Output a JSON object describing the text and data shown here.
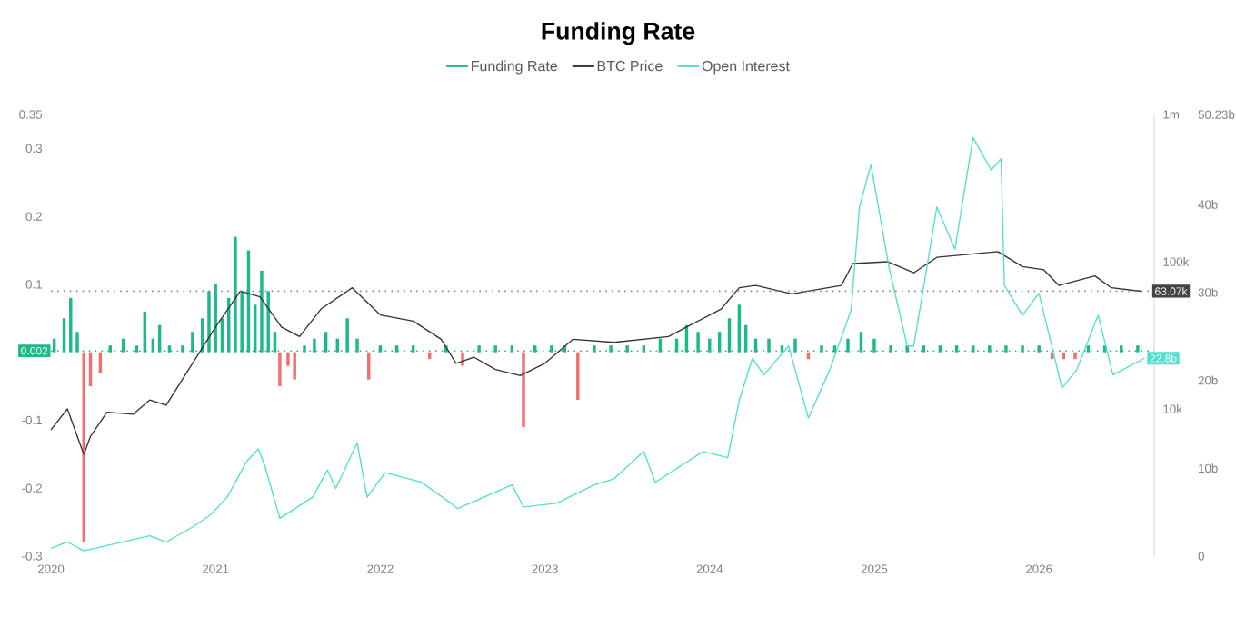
{
  "chart_data": {
    "type": "line",
    "title": "Funding Rate",
    "legend": "top",
    "log": "y2",
    "xlim": [
      2020,
      2026.7
    ],
    "xticks": [
      2020,
      2021,
      2022,
      2023,
      2024,
      2025,
      2026
    ],
    "ylim": [
      -0.3,
      0.35
    ],
    "yticks": [
      -0.3,
      -0.2,
      -0.1,
      0.1,
      0.2,
      0.3,
      0.35
    ],
    "y2lim": [
      1000,
      1000000
    ],
    "y2ticks": [
      {
        "value": 10000,
        "label": "10k"
      },
      {
        "value": 100000,
        "label": "100k"
      },
      {
        "value": 1000000,
        "label": "1m"
      }
    ],
    "y3lim": [
      0,
      50.23
    ],
    "y3ticks": [
      0,
      {
        "value": 10,
        "label": "10b"
      },
      {
        "value": 20,
        "label": "20b"
      },
      {
        "value": 30,
        "label": "30b"
      },
      {
        "value": 40,
        "label": "40b"
      },
      {
        "value": 50.23,
        "label": "50.23b"
      }
    ],
    "ref_lines": [
      {
        "axis": "y",
        "value": 0.002,
        "label": "0.002",
        "color": "#1db98a",
        "line_style": "dotted"
      },
      {
        "axis": "y2",
        "value": 63070,
        "label": "63.07k",
        "color": "#888888",
        "line_style": "dotted"
      }
    ],
    "annotations": [
      "22.8b"
    ],
    "series": [
      {
        "name": "Funding Rate",
        "type": "bar",
        "color": "#1db98a",
        "axis": "y",
        "x": [
          2020.02,
          2020.08,
          2020.12,
          2020.16,
          2020.2,
          2020.24,
          2020.3,
          2020.36,
          2020.44,
          2020.52,
          2020.57,
          2020.62,
          2020.66,
          2020.72,
          2020.8,
          2020.86,
          2020.92,
          2020.96,
          2021.0,
          2021.04,
          2021.08,
          2021.12,
          2021.16,
          2021.2,
          2021.24,
          2021.28,
          2021.32,
          2021.36,
          2021.39,
          2021.44,
          2021.48,
          2021.54,
          2021.6,
          2021.67,
          2021.74,
          2021.8,
          2021.86,
          2021.93,
          2022.0,
          2022.1,
          2022.2,
          2022.3,
          2022.4,
          2022.5,
          2022.6,
          2022.7,
          2022.8,
          2022.87,
          2022.94,
          2023.04,
          2023.12,
          2023.2,
          2023.3,
          2023.4,
          2023.5,
          2023.6,
          2023.7,
          2023.8,
          2023.86,
          2023.93,
          2024.0,
          2024.06,
          2024.12,
          2024.18,
          2024.22,
          2024.28,
          2024.36,
          2024.44,
          2024.52,
          2024.6,
          2024.68,
          2024.76,
          2024.84,
          2024.92,
          2025.0,
          2025.1,
          2025.2,
          2025.3,
          2025.4,
          2025.5,
          2025.6,
          2025.7,
          2025.8,
          2025.9,
          2026.0,
          2026.08,
          2026.15,
          2026.22,
          2026.3,
          2026.4,
          2026.5,
          2026.6
        ],
        "values": [
          0.02,
          0.05,
          0.08,
          0.03,
          -0.28,
          -0.05,
          -0.03,
          0.01,
          0.02,
          0.01,
          0.06,
          0.02,
          0.04,
          0.01,
          0.01,
          0.03,
          0.05,
          0.09,
          0.1,
          0.05,
          0.08,
          0.17,
          0.09,
          0.15,
          0.07,
          0.12,
          0.09,
          0.03,
          -0.05,
          -0.02,
          -0.04,
          0.01,
          0.02,
          0.03,
          0.02,
          0.05,
          0.02,
          -0.04,
          0.01,
          0.01,
          0.01,
          -0.01,
          0.01,
          -0.02,
          0.01,
          0.01,
          0.01,
          -0.11,
          0.01,
          0.01,
          0.01,
          -0.07,
          0.01,
          0.01,
          0.01,
          0.01,
          0.02,
          0.02,
          0.04,
          0.03,
          0.02,
          0.03,
          0.05,
          0.07,
          0.04,
          0.02,
          0.02,
          0.01,
          0.02,
          -0.01,
          0.01,
          0.01,
          0.02,
          0.03,
          0.02,
          0.01,
          0.01,
          0.01,
          0.01,
          0.01,
          0.01,
          0.01,
          0.01,
          0.01,
          0.01,
          -0.01,
          -0.01,
          -0.01,
          0.01,
          0.01,
          0.01,
          0.01
        ],
        "colors": [
          "#1db98a",
          "#1db98a",
          "#1db98a",
          "#1db98a",
          "#f07070",
          "#f07070",
          "#f07070",
          "#1db98a",
          "#1db98a",
          "#1db98a",
          "#1db98a",
          "#1db98a",
          "#1db98a",
          "#1db98a",
          "#1db98a",
          "#1db98a",
          "#1db98a",
          "#1db98a",
          "#1db98a",
          "#1db98a",
          "#1db98a",
          "#1db98a",
          "#1db98a",
          "#1db98a",
          "#1db98a",
          "#1db98a",
          "#1db98a",
          "#1db98a",
          "#f07070",
          "#f07070",
          "#f07070",
          "#1db98a",
          "#1db98a",
          "#1db98a",
          "#1db98a",
          "#1db98a",
          "#1db98a",
          "#f07070",
          "#1db98a",
          "#1db98a",
          "#1db98a",
          "#f07070",
          "#1db98a",
          "#f07070",
          "#1db98a",
          "#1db98a",
          "#1db98a",
          "#f07070",
          "#1db98a",
          "#1db98a",
          "#1db98a",
          "#f07070",
          "#1db98a",
          "#1db98a",
          "#1db98a",
          "#1db98a",
          "#1db98a",
          "#1db98a",
          "#1db98a",
          "#1db98a",
          "#1db98a",
          "#1db98a",
          "#1db98a",
          "#1db98a",
          "#1db98a",
          "#1db98a",
          "#1db98a",
          "#1db98a",
          "#1db98a",
          "#f07070",
          "#1db98a",
          "#1db98a",
          "#1db98a",
          "#1db98a",
          "#1db98a",
          "#1db98a",
          "#1db98a",
          "#1db98a",
          "#1db98a",
          "#1db98a",
          "#1db98a",
          "#1db98a",
          "#1db98a",
          "#1db98a",
          "#1db98a",
          "#f07070",
          "#f07070",
          "#f07070",
          "#1db98a",
          "#1db98a",
          "#1db98a",
          "#1db98a"
        ]
      },
      {
        "name": "BTC Price",
        "color": "#333333",
        "axis": "y2",
        "x": [
          2020.0,
          2020.1,
          2020.2,
          2020.24,
          2020.34,
          2020.5,
          2020.6,
          2020.7,
          2020.86,
          2021.0,
          2021.15,
          2021.27,
          2021.4,
          2021.51,
          2021.64,
          2021.83,
          2022.0,
          2022.2,
          2022.37,
          2022.46,
          2022.57,
          2022.7,
          2022.85,
          2023.0,
          2023.17,
          2023.42,
          2023.75,
          2023.86,
          2024.07,
          2024.18,
          2024.28,
          2024.5,
          2024.8,
          2024.87,
          2025.08,
          2025.24,
          2025.38,
          2025.75,
          2025.9,
          2026.03,
          2026.12,
          2026.34,
          2026.44,
          2026.62
        ],
        "values": [
          7200,
          10000,
          4900,
          6500,
          9500,
          9200,
          11500,
          10600,
          20400,
          36000,
          63000,
          57700,
          36000,
          31000,
          47700,
          66500,
          43500,
          39500,
          29700,
          20400,
          22400,
          18500,
          16800,
          20400,
          29700,
          28300,
          31000,
          36000,
          47700,
          66500,
          69000,
          60500,
          69000,
          97200,
          100000,
          84000,
          107000,
          117000,
          92600,
          88000,
          69000,
          80000,
          66500,
          63000
        ]
      },
      {
        "name": "Open Interest",
        "color": "#4ee0d0",
        "axis": "y3",
        "x": [
          2020.0,
          2020.1,
          2020.2,
          2020.6,
          2020.7,
          2020.86,
          2020.97,
          2021.07,
          2021.19,
          2021.26,
          2021.3,
          2021.39,
          2021.59,
          2021.68,
          2021.73,
          2021.86,
          2021.92,
          2022.03,
          2022.25,
          2022.43,
          2022.47,
          2022.8,
          2022.87,
          2023.07,
          2023.3,
          2023.42,
          2023.6,
          2023.67,
          2023.96,
          2024.11,
          2024.18,
          2024.26,
          2024.33,
          2024.48,
          2024.6,
          2024.73,
          2024.86,
          2024.91,
          2024.98,
          2025.09,
          2025.2,
          2025.24,
          2025.38,
          2025.49,
          2025.6,
          2025.71,
          2025.77,
          2025.79,
          2025.9,
          2026.0,
          2026.14,
          2026.23,
          2026.36,
          2026.45,
          2026.64
        ],
        "values": [
          0.9,
          1.6,
          0.6,
          2.3,
          1.6,
          3.3,
          4.7,
          6.7,
          10.8,
          12.2,
          10.2,
          4.3,
          6.7,
          9.8,
          7.7,
          12.9,
          6.7,
          9.5,
          8.4,
          6.0,
          5.4,
          8.1,
          5.6,
          6.0,
          8.1,
          8.8,
          11.9,
          8.4,
          11.9,
          11.2,
          17.7,
          22.5,
          20.6,
          23.9,
          15.7,
          21.2,
          28.0,
          39.7,
          44.5,
          32.8,
          23.9,
          23.9,
          39.7,
          34.9,
          47.6,
          43.9,
          45.2,
          30.8,
          27.4,
          29.9,
          19.1,
          21.2,
          27.4,
          20.6,
          22.5
        ]
      }
    ]
  }
}
